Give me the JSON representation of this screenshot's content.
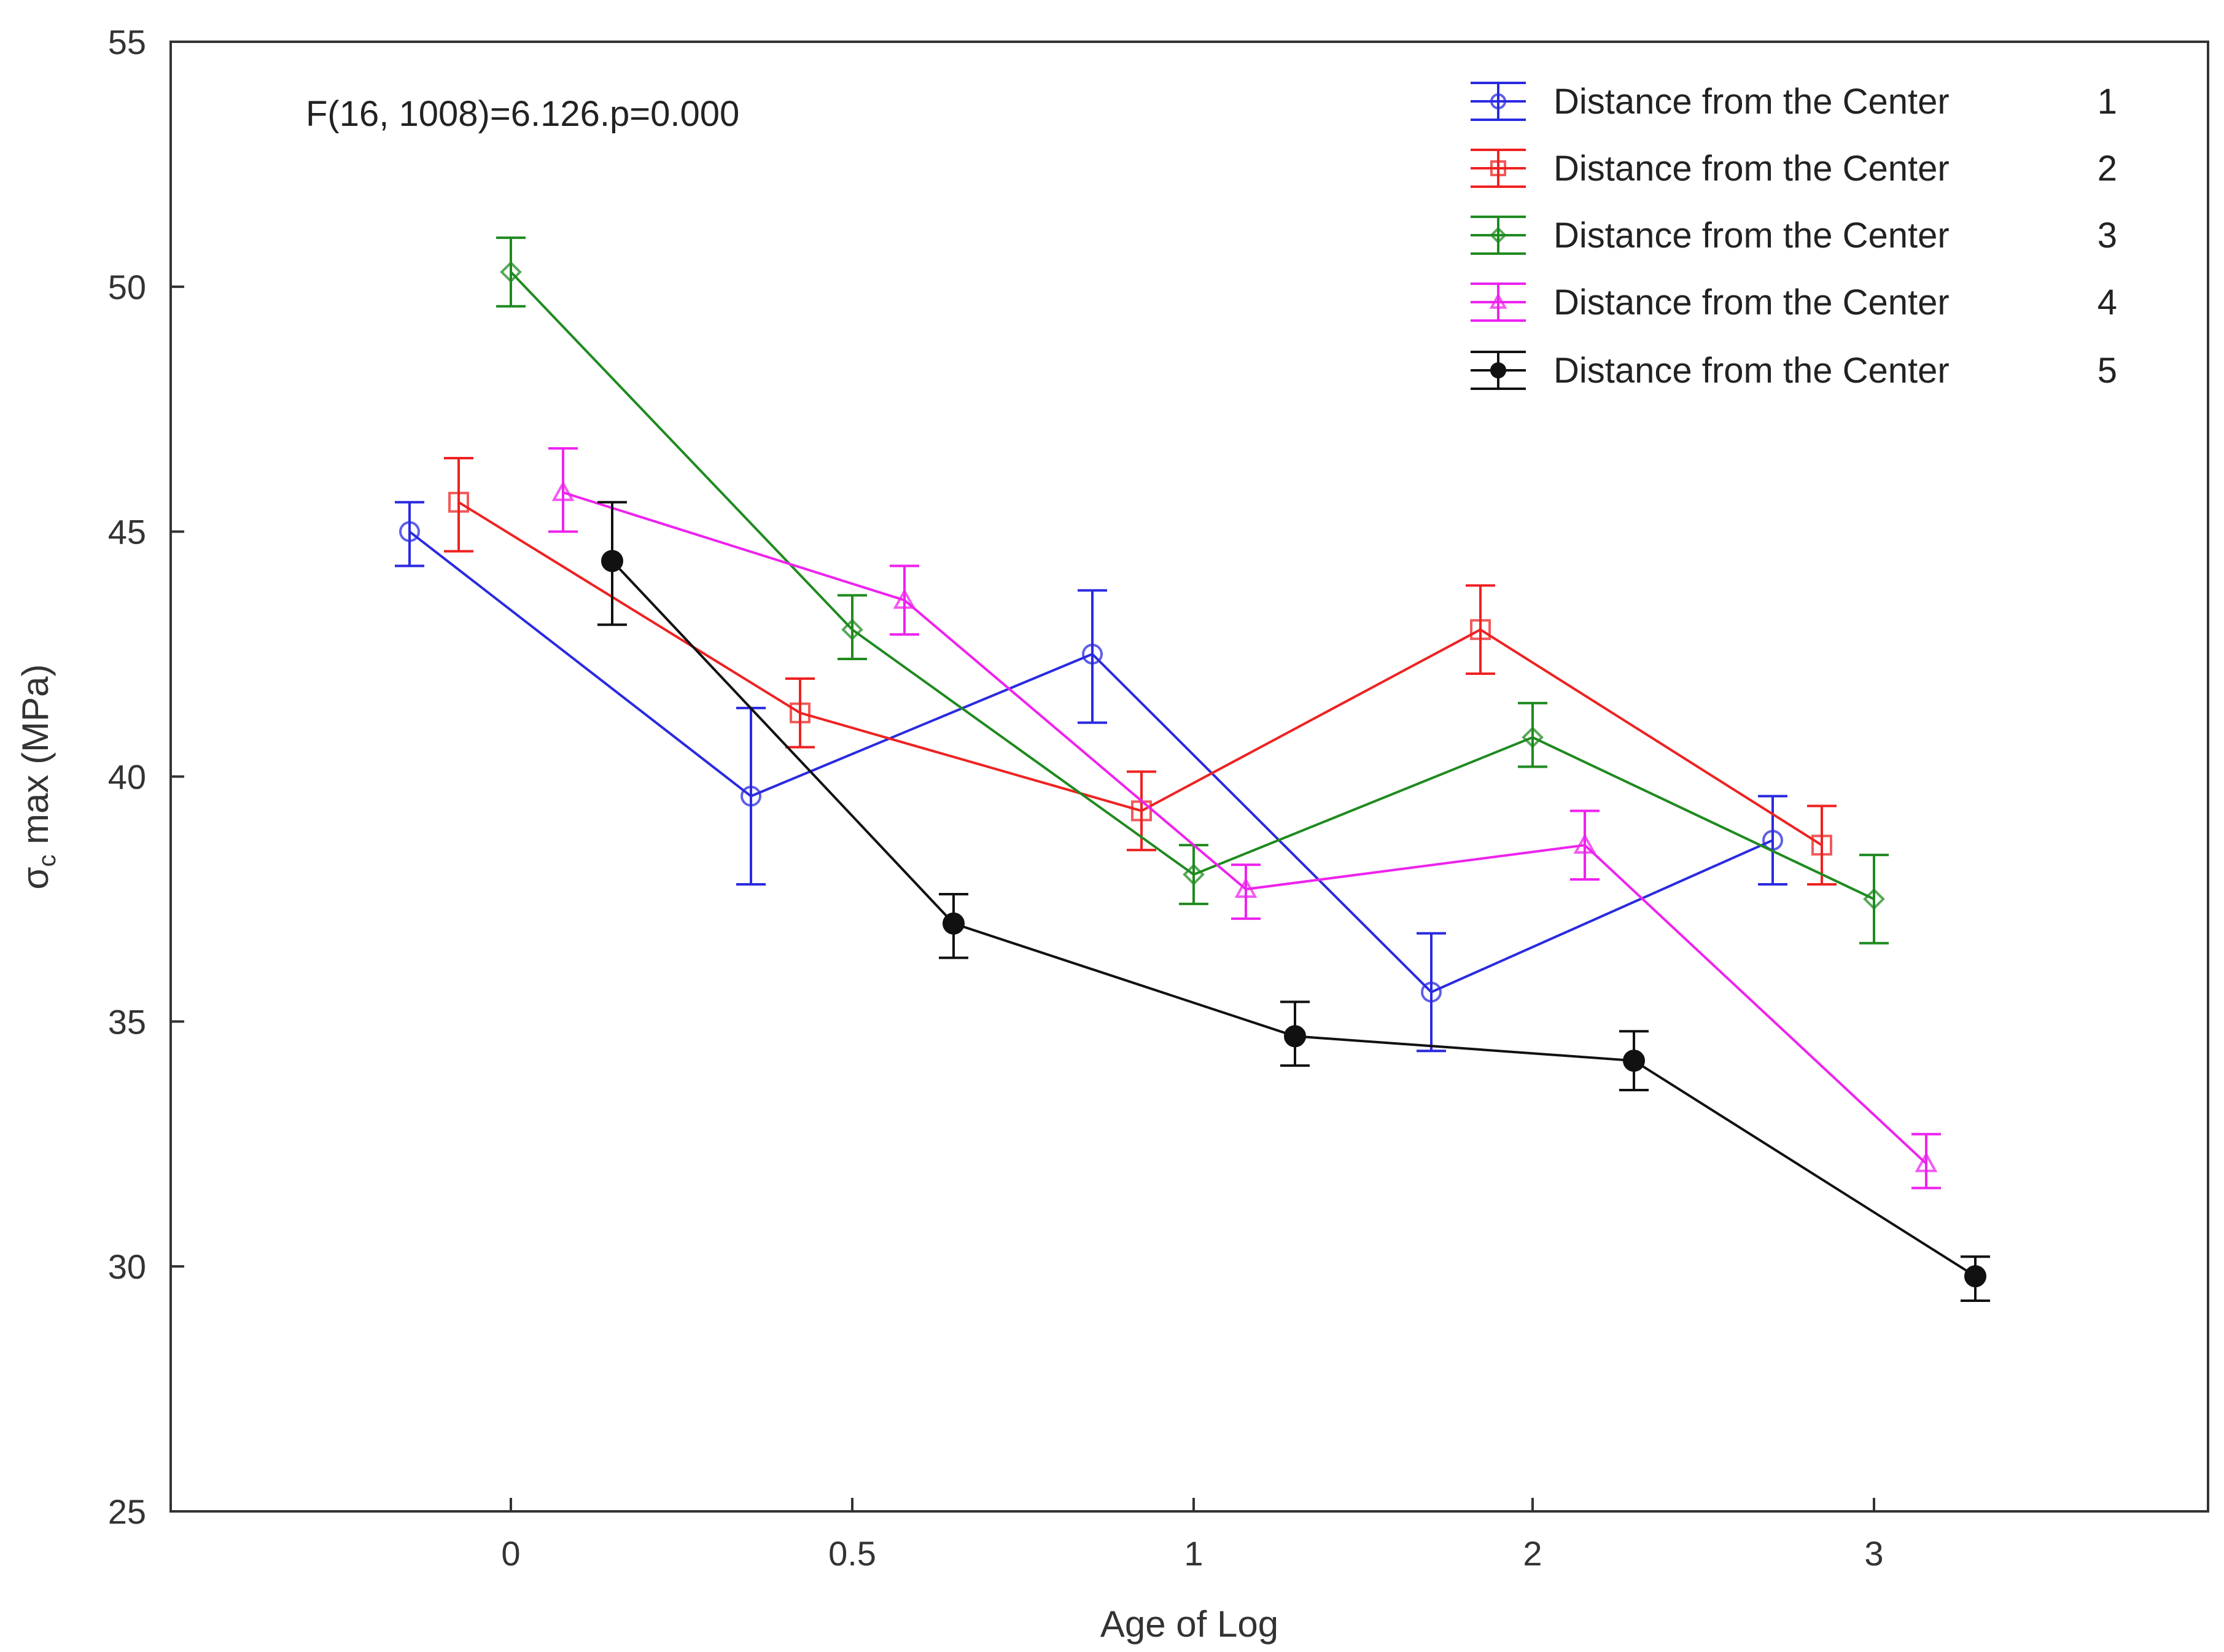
{
  "chart_data": {
    "type": "line",
    "title": "",
    "annotation": "F(16, 1008)=6.126.p=0.000",
    "xlabel": "Age of Log",
    "ylabel": "σ",
    "ylabel_sub": "c",
    "ylabel_rest": " max (MPa)",
    "categories": [
      "0",
      "0.5",
      "1",
      "2",
      "3"
    ],
    "ylim": [
      25,
      55
    ],
    "yticks": [
      25,
      30,
      35,
      40,
      45,
      50,
      55
    ],
    "grid": false,
    "legend_position": "top-right",
    "series": [
      {
        "name": "Distance from the Center",
        "level": "1",
        "color": "#2a2ae0",
        "marker": "circle",
        "values": [
          45.0,
          39.6,
          42.5,
          35.6,
          38.7
        ],
        "lower": [
          44.3,
          37.8,
          41.1,
          34.4,
          37.8
        ],
        "upper": [
          45.6,
          41.4,
          43.8,
          36.8,
          39.6
        ]
      },
      {
        "name": "Distance from the Center",
        "level": "2",
        "color": "#ee2222",
        "marker": "square",
        "values": [
          45.6,
          41.3,
          39.3,
          43.0,
          38.6
        ],
        "lower": [
          44.6,
          40.6,
          38.5,
          42.1,
          37.8
        ],
        "upper": [
          46.5,
          42.0,
          40.1,
          43.9,
          39.4
        ]
      },
      {
        "name": "Distance from the Center",
        "level": "3",
        "color": "#1f8a1f",
        "marker": "diamond",
        "values": [
          50.3,
          43.0,
          38.0,
          40.8,
          37.5
        ],
        "lower": [
          49.6,
          42.4,
          37.4,
          40.2,
          36.6
        ],
        "upper": [
          51.0,
          43.7,
          38.6,
          41.5,
          38.4
        ]
      },
      {
        "name": "Distance from the Center",
        "level": "4",
        "color": "#ee22ee",
        "marker": "triangle",
        "values": [
          45.8,
          43.6,
          37.7,
          38.6,
          32.1
        ],
        "lower": [
          45.0,
          42.9,
          37.1,
          37.9,
          31.6
        ],
        "upper": [
          46.7,
          44.3,
          38.2,
          39.3,
          32.7
        ]
      },
      {
        "name": "Distance from the Center",
        "level": "5",
        "color": "#111111",
        "marker": "filled-circle",
        "values": [
          44.4,
          37.0,
          34.7,
          34.2,
          29.8
        ],
        "lower": [
          43.1,
          36.3,
          34.1,
          33.6,
          29.3
        ],
        "upper": [
          45.6,
          37.6,
          35.4,
          34.8,
          30.2
        ]
      }
    ]
  }
}
